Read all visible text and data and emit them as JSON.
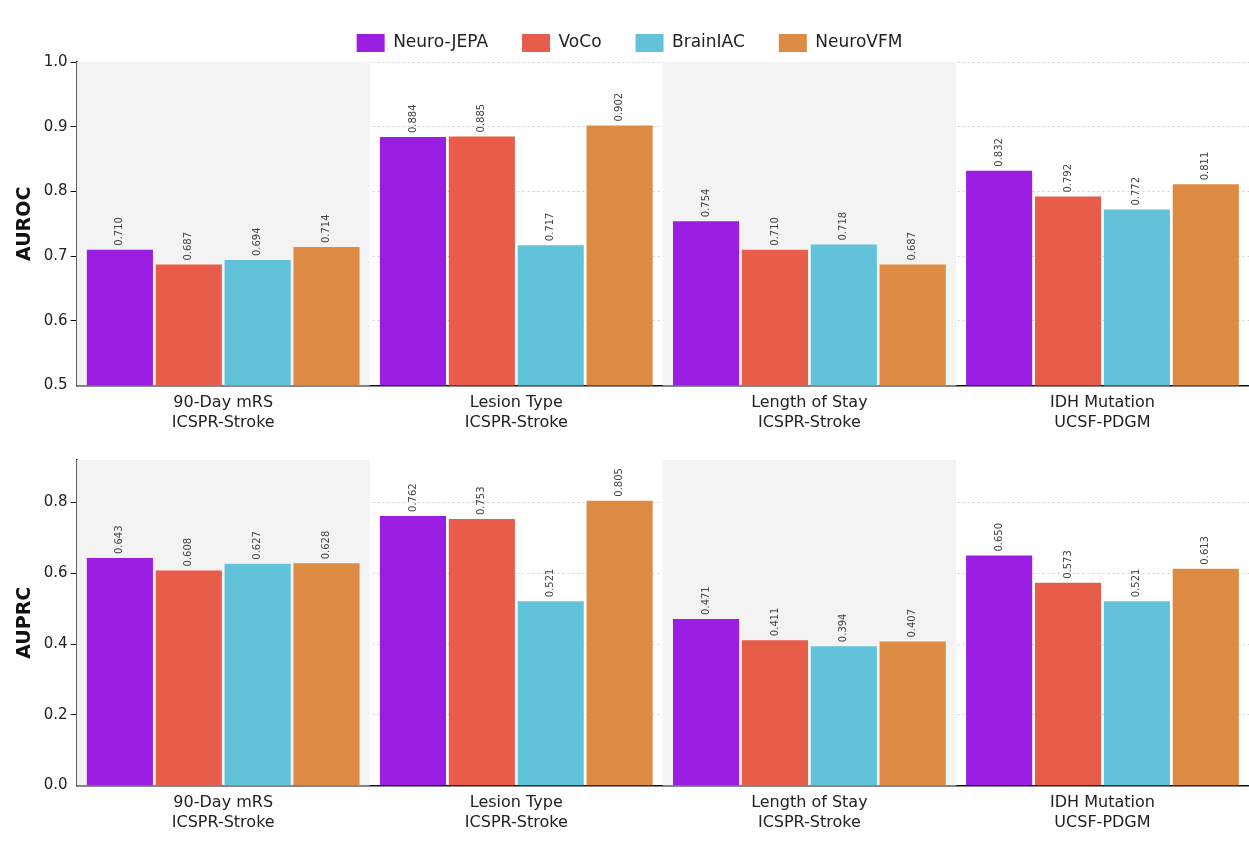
{
  "chart_data": [
    {
      "type": "bar",
      "ylabel": "AUROC",
      "categories": [
        "90-Day mRS\nICSPR-Stroke",
        "Lesion Type\nICSPR-Stroke",
        "Length of Stay\nICSPR-Stroke",
        "IDH Mutation\nUCSF-PDGM"
      ],
      "series": [
        {
          "name": "Neuro-JEPA",
          "color": "#9a1ee2",
          "values": [
            0.71,
            0.884,
            0.754,
            0.832
          ],
          "value_labels": [
            "0.710",
            "0.884",
            "0.754",
            "0.832"
          ]
        },
        {
          "name": "VoCo",
          "color": "#e85c4a",
          "values": [
            0.687,
            0.885,
            0.71,
            0.792
          ],
          "value_labels": [
            "0.687",
            "0.885",
            "0.710",
            "0.792"
          ]
        },
        {
          "name": "BrainIAC",
          "color": "#62c2da",
          "values": [
            0.694,
            0.717,
            0.718,
            0.772
          ],
          "value_labels": [
            "0.694",
            "0.717",
            "0.718",
            "0.772"
          ]
        },
        {
          "name": "NeuroVFM",
          "color": "#dd8a42",
          "values": [
            0.714,
            0.902,
            0.687,
            0.811
          ],
          "value_labels": [
            "0.714",
            "0.902",
            "0.687",
            "0.811"
          ]
        }
      ],
      "ylim": [
        0.5,
        1.0
      ],
      "yticks": [
        0.5,
        0.6,
        0.7,
        0.8,
        0.9,
        {
          "value": 1.0,
          "label": "1.0"
        }
      ],
      "grid": "y",
      "legend": "top",
      "bands": [
        {
          "axis": "x",
          "from": "90-Day mRS\nICSPR-Stroke",
          "to": "90-Day mRS\nICSPR-Stroke",
          "color": "#f3f3f3"
        },
        {
          "axis": "x",
          "from": "Length of Stay\nICSPR-Stroke",
          "to": "Length of Stay\nICSPR-Stroke",
          "color": "#f3f3f3"
        }
      ]
    },
    {
      "type": "bar",
      "ylabel": "AUPRC",
      "categories": [
        "90-Day mRS\nICSPR-Stroke",
        "Lesion Type\nICSPR-Stroke",
        "Length of Stay\nICSPR-Stroke",
        "IDH Mutation\nUCSF-PDGM"
      ],
      "series": [
        {
          "color": "#9a1ee2",
          "values": [
            0.643,
            0.762,
            0.471,
            0.65
          ],
          "value_labels": [
            "0.643",
            "0.762",
            "0.471",
            "0.650"
          ]
        },
        {
          "color": "#e85c4a",
          "values": [
            0.608,
            0.753,
            0.411,
            0.573
          ],
          "value_labels": [
            "0.608",
            "0.753",
            "0.411",
            "0.573"
          ]
        },
        {
          "color": "#62c2da",
          "values": [
            0.627,
            0.521,
            0.394,
            0.521
          ],
          "value_labels": [
            "0.627",
            "0.521",
            "0.394",
            "0.521"
          ]
        },
        {
          "color": "#dd8a42",
          "values": [
            0.628,
            0.805,
            0.407,
            0.613
          ],
          "value_labels": [
            "0.628",
            "0.805",
            "0.407",
            "0.613"
          ]
        }
      ],
      "ylim": [
        0,
        0.92
      ],
      "yticks": [
        {
          "value": 0,
          "label": "0.0"
        },
        0.2,
        0.4,
        0.6,
        0.8
      ],
      "grid": "y",
      "legend": false,
      "bands": [
        {
          "axis": "x",
          "from": "90-Day mRS\nICSPR-Stroke",
          "to": "90-Day mRS\nICSPR-Stroke",
          "color": "#f3f3f3"
        },
        {
          "axis": "x",
          "from": "Length of Stay\nICSPR-Stroke",
          "to": "Length of Stay\nICSPR-Stroke",
          "color": "#f3f3f3"
        }
      ]
    }
  ]
}
